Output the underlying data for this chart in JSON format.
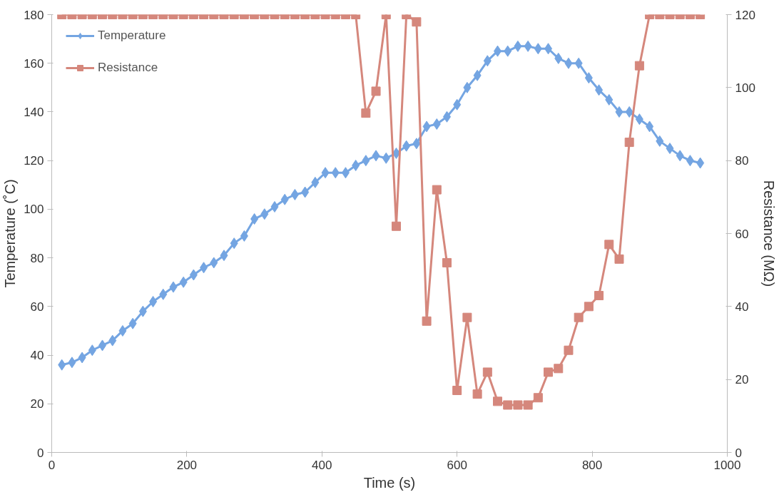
{
  "chart_data": {
    "type": "line",
    "xlabel": "Time (s)",
    "ylabel": "Temperature (˚C)",
    "y2label": "Resistance (MΩ)",
    "xlim": [
      0,
      1000
    ],
    "xticks": [
      0,
      200,
      400,
      600,
      800,
      1000
    ],
    "ylim": [
      0,
      180
    ],
    "yticks": [
      0,
      20,
      40,
      60,
      80,
      100,
      120,
      140,
      160,
      180
    ],
    "y2lim": [
      0,
      120
    ],
    "y2ticks": [
      0,
      20,
      40,
      60,
      80,
      100,
      120
    ],
    "grid": false,
    "legend": "top left",
    "series": [
      {
        "name": "Temperature",
        "color": "#74a5e2",
        "marker": "diamond",
        "x": [
          15,
          30,
          45,
          60,
          75,
          90,
          105,
          120,
          135,
          150,
          165,
          180,
          195,
          210,
          225,
          240,
          255,
          270,
          285,
          300,
          315,
          330,
          345,
          360,
          375,
          390,
          405,
          420,
          435,
          450,
          465,
          480,
          495,
          510,
          525,
          540,
          555,
          570,
          585,
          600,
          615,
          630,
          645,
          660,
          675,
          690,
          705,
          720,
          735,
          750,
          765,
          780,
          795,
          810,
          825,
          840,
          855,
          870,
          885,
          900,
          915,
          930,
          945,
          960
        ],
        "values": [
          36,
          37,
          39,
          42,
          44,
          46,
          50,
          53,
          58,
          62,
          65,
          68,
          70,
          73,
          76,
          78,
          81,
          86,
          89,
          96,
          98,
          101,
          104,
          106,
          107,
          111,
          115,
          115,
          115,
          118,
          120,
          122,
          121,
          123,
          126,
          127,
          134,
          135,
          138,
          143,
          150,
          155,
          161,
          165,
          165,
          167,
          167,
          166,
          166,
          162,
          160,
          160,
          154,
          149,
          145,
          140,
          140,
          137,
          134,
          128,
          125,
          122,
          120,
          119
        ]
      },
      {
        "name": "Resistance",
        "color": "#d5877c",
        "marker": "square",
        "axis": "y2",
        "x": [
          15,
          30,
          45,
          60,
          75,
          90,
          105,
          120,
          135,
          150,
          165,
          180,
          195,
          210,
          225,
          240,
          255,
          270,
          285,
          300,
          315,
          330,
          345,
          360,
          375,
          390,
          405,
          420,
          435,
          450,
          465,
          480,
          495,
          510,
          525,
          540,
          555,
          570,
          585,
          600,
          615,
          630,
          645,
          660,
          675,
          690,
          705,
          720,
          735,
          750,
          765,
          780,
          795,
          810,
          825,
          840,
          855,
          870,
          885,
          900,
          915,
          930,
          945,
          960
        ],
        "values": [
          120,
          120,
          120,
          120,
          120,
          120,
          120,
          120,
          120,
          120,
          120,
          120,
          120,
          120,
          120,
          120,
          120,
          120,
          120,
          120,
          120,
          120,
          120,
          120,
          120,
          120,
          120,
          120,
          120,
          120,
          93,
          99,
          120,
          62,
          120,
          118,
          36,
          72,
          52,
          17,
          37,
          16,
          22,
          14,
          13,
          13,
          13,
          15,
          22,
          23,
          28,
          37,
          40,
          43,
          57,
          53,
          85,
          106,
          120,
          120,
          120,
          120,
          120,
          120
        ]
      }
    ]
  }
}
